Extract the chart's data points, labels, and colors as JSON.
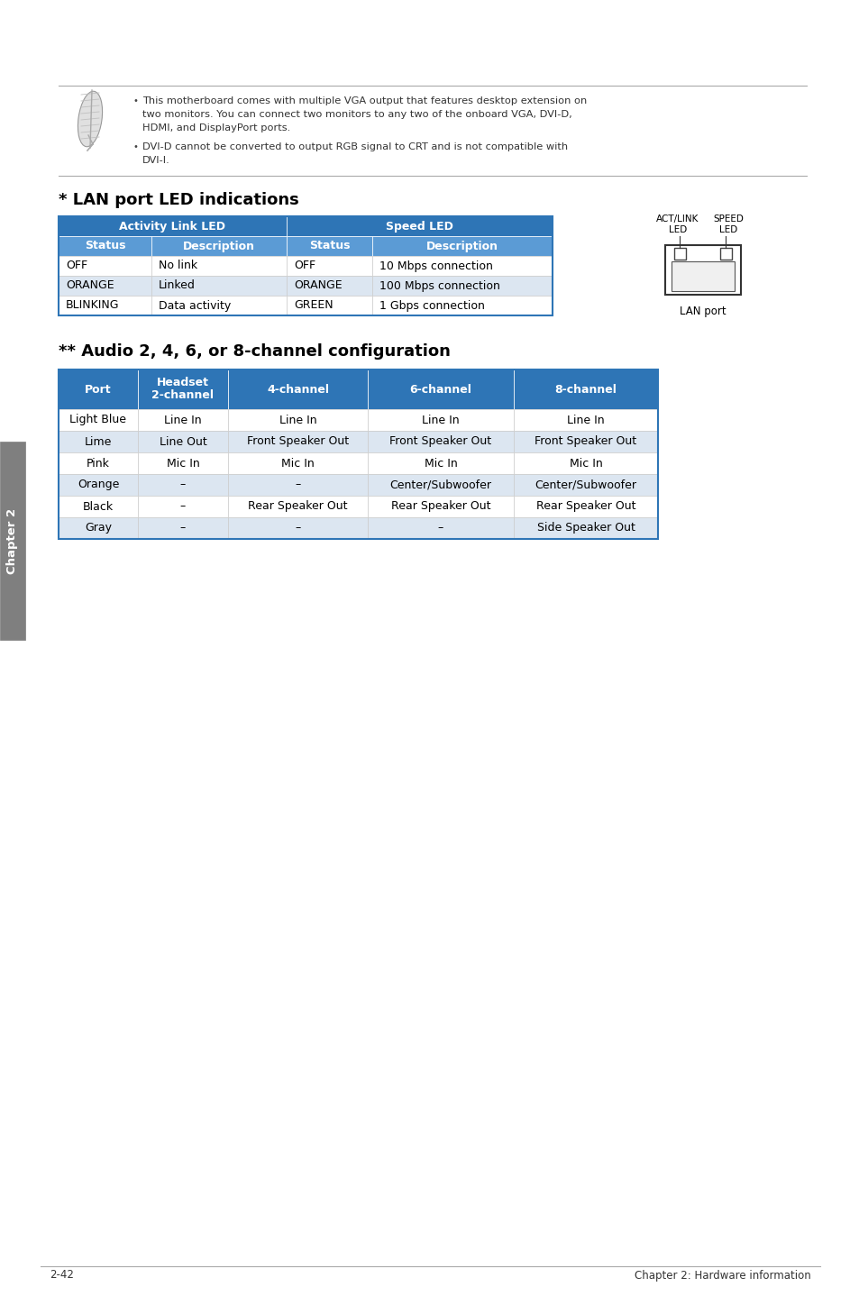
{
  "page_bg": "#ffffff",
  "page_number": "2-42",
  "page_footer_right": "Chapter 2: Hardware information",
  "chapter_tab_text": "Chapter 2",
  "chapter_tab_bg": "#7f7f7f",
  "note_line1": "This motherboard comes with multiple VGA output that features desktop extension on",
  "note_line2": "two monitors. You can connect two monitors to any two of the onboard VGA, DVI-D,",
  "note_line3": "HDMI, and DisplayPort ports.",
  "note_line4": "DVI-D cannot be converted to output RGB signal to CRT and is not compatible with",
  "note_line5": "DVI-I.",
  "lan_title": "* LAN port LED indications",
  "lan_header_bg": "#2e75b6",
  "lan_subheader_bg": "#5b9bd5",
  "lan_sub_headers": [
    "Status",
    "Description",
    "Status",
    "Description"
  ],
  "lan_rows": [
    [
      "OFF",
      "No link",
      "OFF",
      "10 Mbps connection"
    ],
    [
      "ORANGE",
      "Linked",
      "ORANGE",
      "100 Mbps connection"
    ],
    [
      "BLINKING",
      "Data activity",
      "GREEN",
      "1 Gbps connection"
    ]
  ],
  "lan_port_label": "LAN port",
  "audio_title": "** Audio 2, 4, 6, or 8-channel configuration",
  "audio_header_bg": "#2e75b6",
  "audio_table_headers": [
    "Port",
    "Headset\n2-channel",
    "4-channel",
    "6-channel",
    "8-channel"
  ],
  "audio_rows": [
    [
      "Light Blue",
      "Line In",
      "Line In",
      "Line In",
      "Line In"
    ],
    [
      "Lime",
      "Line Out",
      "Front Speaker Out",
      "Front Speaker Out",
      "Front Speaker Out"
    ],
    [
      "Pink",
      "Mic In",
      "Mic In",
      "Mic In",
      "Mic In"
    ],
    [
      "Orange",
      "–",
      "–",
      "Center/Subwoofer",
      "Center/Subwoofer"
    ],
    [
      "Black",
      "–",
      "Rear Speaker Out",
      "Rear Speaker Out",
      "Rear Speaker Out"
    ],
    [
      "Gray",
      "–",
      "–",
      "–",
      "Side Speaker Out"
    ]
  ],
  "border_color": "#2e75b6",
  "separator_color": "#aaaaaa",
  "text_color": "#333333",
  "cell_alt_bg": "#dce6f1"
}
